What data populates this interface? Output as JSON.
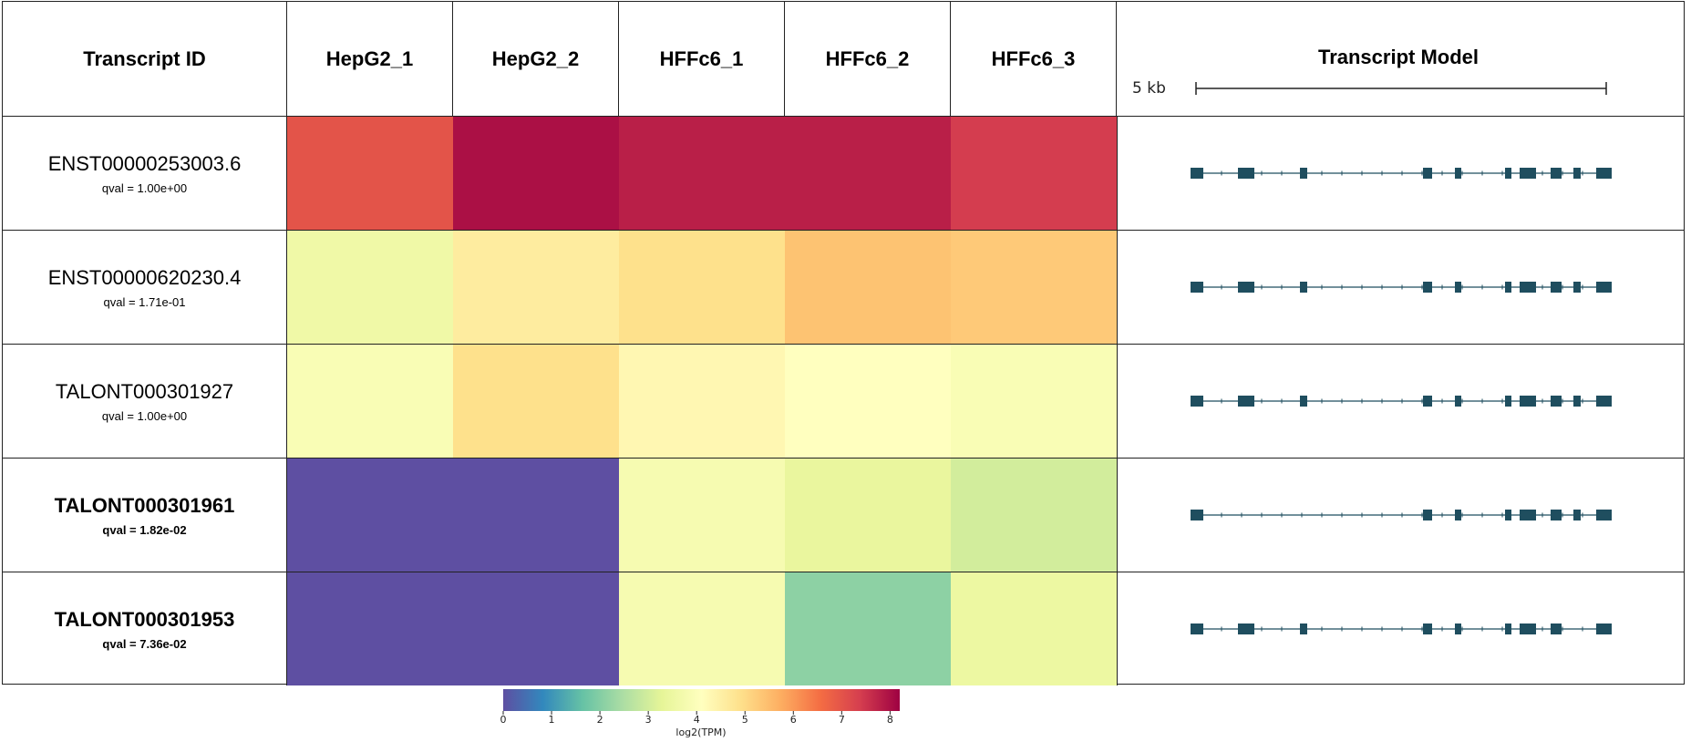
{
  "chart_data": {
    "type": "heatmap",
    "columns": {
      "id_header": "Transcript ID",
      "samples": [
        "HepG2_1",
        "HepG2_2",
        "HFFc6_1",
        "HFFc6_2",
        "HFFc6_3"
      ],
      "model_header": "Transcript Model"
    },
    "scale_label": "5 kb",
    "rows": [
      {
        "id": "ENST00000253003.6",
        "qval": "qval = 1.00e+00",
        "bold": false,
        "values": [
          7.0,
          8.0,
          7.8,
          7.8,
          7.4
        ]
      },
      {
        "id": "ENST00000620230.4",
        "qval": "qval = 1.71e-01",
        "bold": false,
        "values": [
          3.6,
          4.6,
          4.9,
          5.4,
          5.3
        ]
      },
      {
        "id": "TALONT000301927",
        "qval": "qval = 1.00e+00",
        "bold": false,
        "values": [
          3.9,
          4.9,
          4.3,
          4.1,
          3.9
        ]
      },
      {
        "id": "TALONT000301961",
        "qval": "qval = 1.82e-02",
        "bold": true,
        "values": [
          0.0,
          0.0,
          3.8,
          3.4,
          3.0
        ]
      },
      {
        "id": "TALONT000301953",
        "qval": "qval = 7.36e-02",
        "bold": true,
        "values": [
          0.0,
          0.0,
          3.8,
          2.1,
          3.5
        ]
      }
    ],
    "colorbar": {
      "label": "log2(TPM)",
      "min": 0,
      "max": 8.2,
      "ticks": [
        "0",
        "1",
        "2",
        "3",
        "4",
        "5",
        "6",
        "7",
        "8"
      ],
      "colormap": "Spectral_r"
    },
    "colors": {
      "exon": "#1f4e5f",
      "border": "#222222"
    }
  }
}
